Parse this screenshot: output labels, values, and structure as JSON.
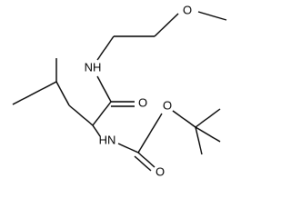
{
  "atoms": [
    {
      "label": "O"
    },
    {
      "label": "NH"
    },
    {
      "label": "O"
    },
    {
      "label": "O"
    },
    {
      "label": "HN"
    },
    {
      "label": "O"
    }
  ]
}
